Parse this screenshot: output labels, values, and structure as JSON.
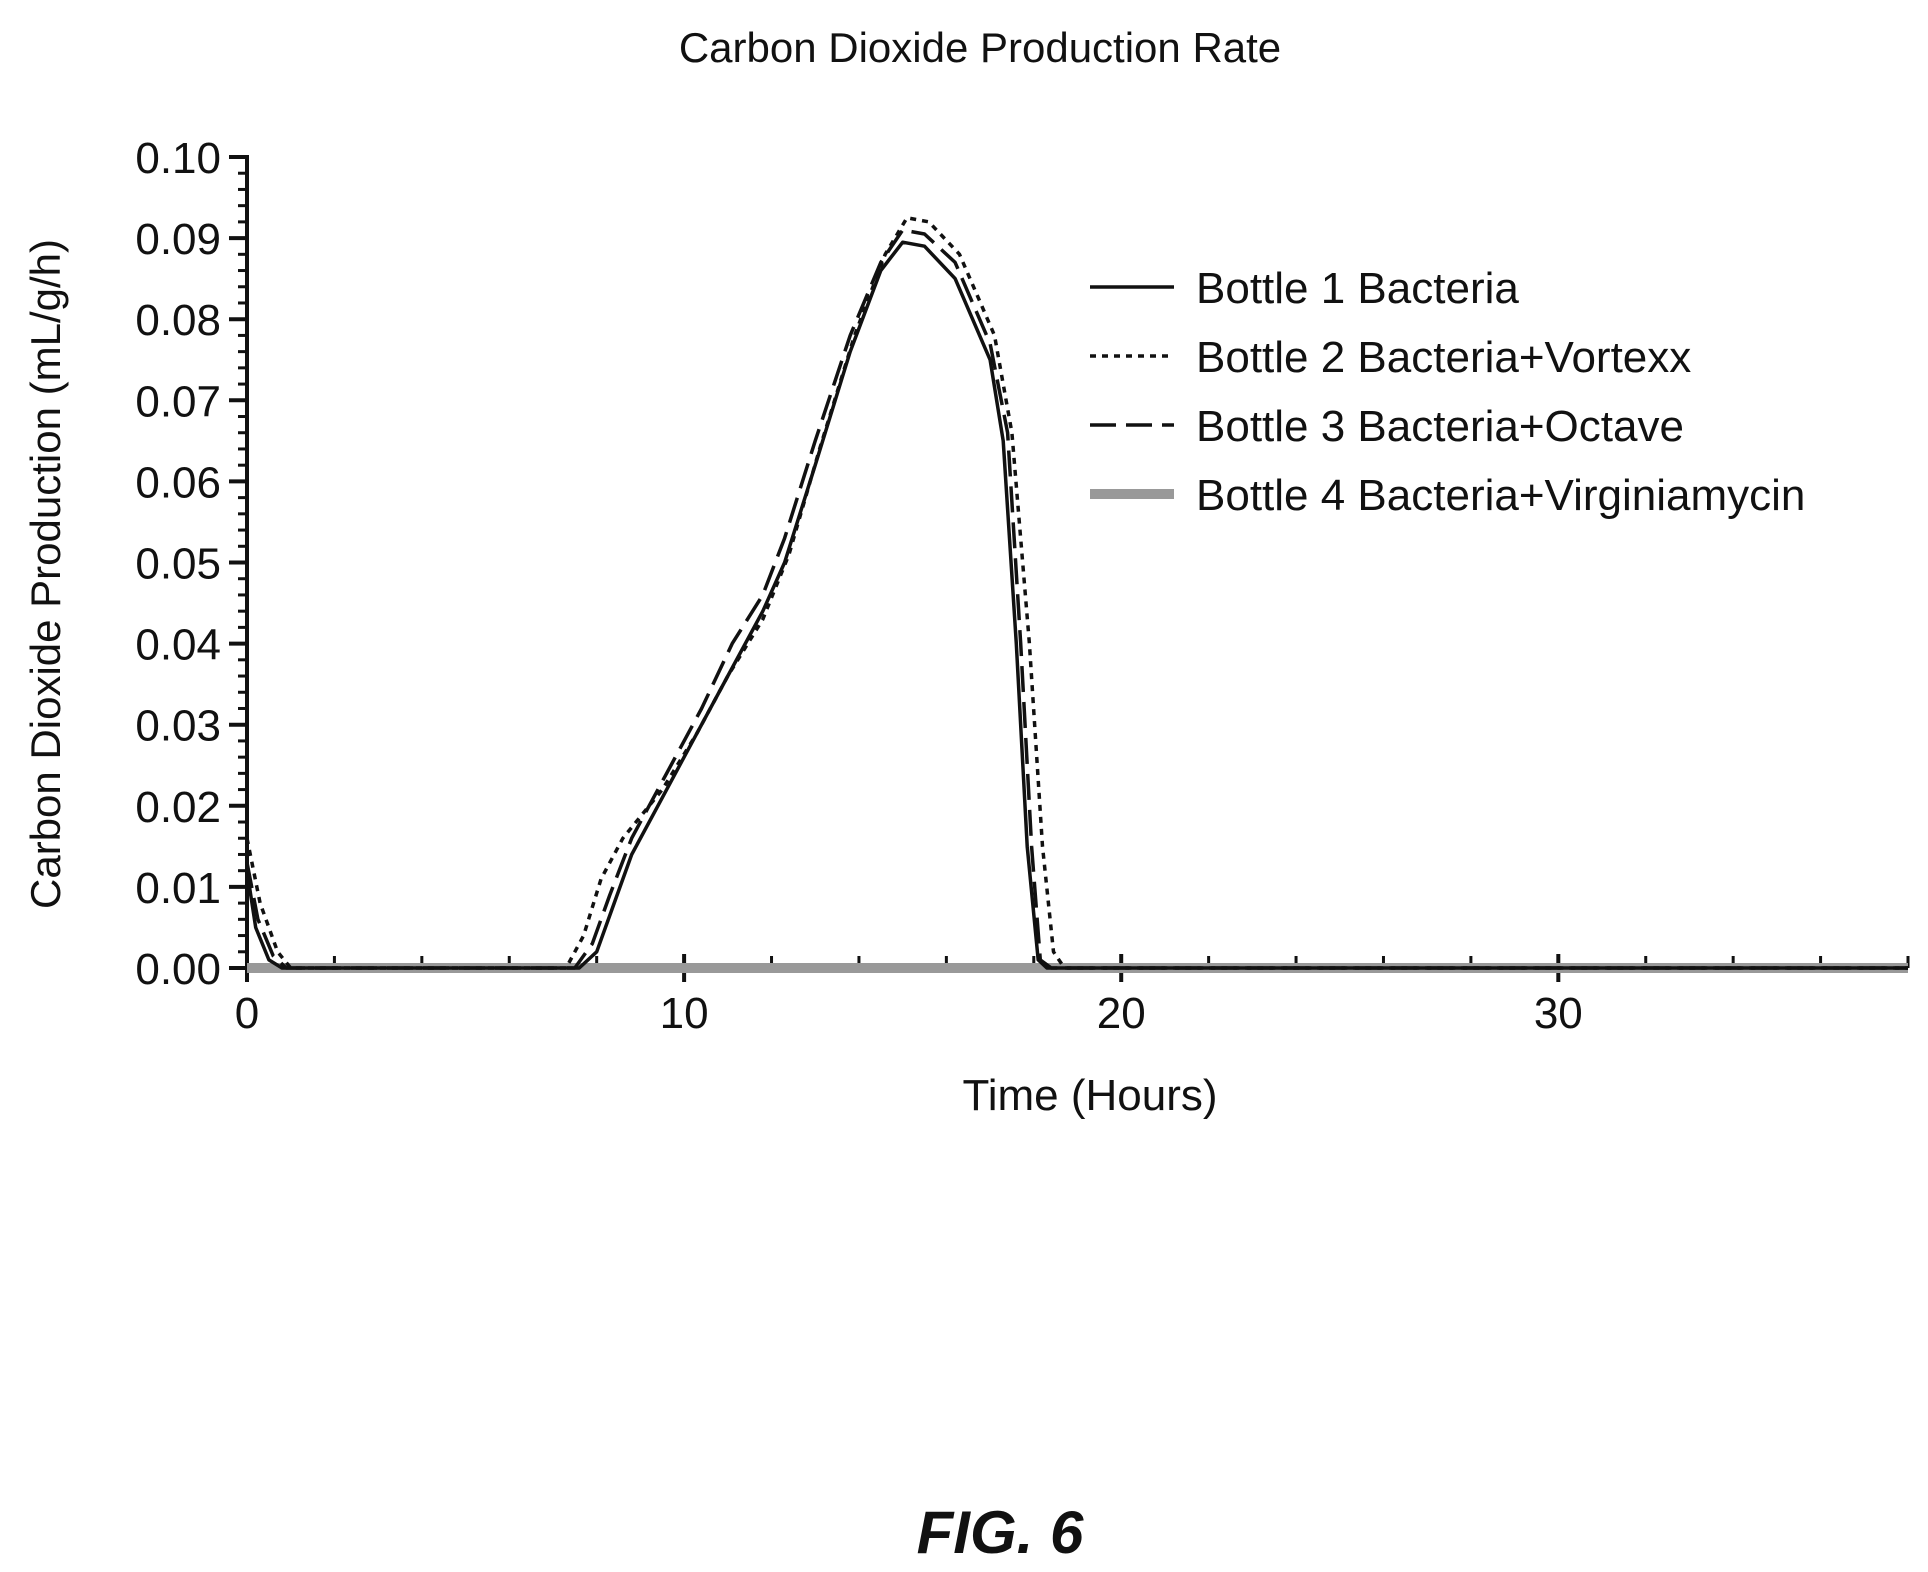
{
  "figure_label": "FIG. 6",
  "chart_data": {
    "type": "line",
    "title": "Carbon Dioxide Production Rate",
    "xlabel": "Time (Hours)",
    "ylabel": "Carbon Dioxide Production (mL/g/h)",
    "xlim": [
      0,
      38
    ],
    "ylim": [
      0,
      0.1
    ],
    "x_ticks": [
      0,
      10,
      20,
      30
    ],
    "x_tick_labels": [
      "0",
      "10",
      "20",
      "30"
    ],
    "y_ticks": [
      0.0,
      0.01,
      0.02,
      0.03,
      0.04,
      0.05,
      0.06,
      0.07,
      0.08,
      0.09,
      0.1
    ],
    "y_tick_labels": [
      "0.00",
      "0.01",
      "0.02",
      "0.03",
      "0.04",
      "0.05",
      "0.06",
      "0.07",
      "0.08",
      "0.09",
      "0.10"
    ],
    "grid": false,
    "legend_position": "top-right",
    "series": [
      {
        "name": "Bottle 1 Bacteria",
        "style": "solid-thin",
        "color": "#111111",
        "points": [
          [
            0,
            0.012
          ],
          [
            0.2,
            0.005
          ],
          [
            0.5,
            0.001
          ],
          [
            0.8,
            0
          ],
          [
            7.6,
            0
          ],
          [
            8.0,
            0.002
          ],
          [
            8.4,
            0.008
          ],
          [
            8.8,
            0.014
          ],
          [
            9.5,
            0.021
          ],
          [
            10.2,
            0.028
          ],
          [
            11.0,
            0.036
          ],
          [
            11.8,
            0.044
          ],
          [
            12.3,
            0.05
          ],
          [
            13.0,
            0.062
          ],
          [
            13.8,
            0.076
          ],
          [
            14.5,
            0.086
          ],
          [
            15.0,
            0.0895
          ],
          [
            15.5,
            0.089
          ],
          [
            16.2,
            0.085
          ],
          [
            17.0,
            0.075
          ],
          [
            17.3,
            0.065
          ],
          [
            17.6,
            0.04
          ],
          [
            17.85,
            0.015
          ],
          [
            18.1,
            0.001
          ],
          [
            18.3,
            0
          ],
          [
            38,
            0
          ]
        ]
      },
      {
        "name": "Bottle 2 Bacteria+Vortexx",
        "style": "dotted",
        "color": "#111111",
        "points": [
          [
            0,
            0.016
          ],
          [
            0.3,
            0.008
          ],
          [
            0.7,
            0.002
          ],
          [
            1.0,
            0
          ],
          [
            7.3,
            0
          ],
          [
            7.7,
            0.004
          ],
          [
            8.1,
            0.011
          ],
          [
            8.6,
            0.016
          ],
          [
            9.5,
            0.022
          ],
          [
            10.3,
            0.029
          ],
          [
            11.0,
            0.036
          ],
          [
            11.8,
            0.043
          ],
          [
            12.4,
            0.051
          ],
          [
            13.1,
            0.064
          ],
          [
            13.9,
            0.078
          ],
          [
            14.6,
            0.088
          ],
          [
            15.1,
            0.0925
          ],
          [
            15.6,
            0.092
          ],
          [
            16.3,
            0.088
          ],
          [
            17.1,
            0.078
          ],
          [
            17.5,
            0.066
          ],
          [
            17.9,
            0.04
          ],
          [
            18.2,
            0.015
          ],
          [
            18.45,
            0.002
          ],
          [
            18.7,
            0
          ],
          [
            38,
            0
          ]
        ]
      },
      {
        "name": "Bottle 3 Bacteria+Octave",
        "style": "dashed",
        "color": "#111111",
        "points": [
          [
            0,
            0.013
          ],
          [
            0.25,
            0.006
          ],
          [
            0.6,
            0.0015
          ],
          [
            0.9,
            0
          ],
          [
            7.5,
            0
          ],
          [
            7.9,
            0.003
          ],
          [
            8.3,
            0.009
          ],
          [
            8.8,
            0.016
          ],
          [
            9.6,
            0.024
          ],
          [
            10.4,
            0.032
          ],
          [
            11.1,
            0.04
          ],
          [
            11.8,
            0.046
          ],
          [
            12.3,
            0.053
          ],
          [
            13.0,
            0.065
          ],
          [
            13.8,
            0.078
          ],
          [
            14.5,
            0.087
          ],
          [
            15.0,
            0.091
          ],
          [
            15.5,
            0.0905
          ],
          [
            16.2,
            0.087
          ],
          [
            17.0,
            0.077
          ],
          [
            17.4,
            0.066
          ],
          [
            17.7,
            0.04
          ],
          [
            17.95,
            0.015
          ],
          [
            18.15,
            0.001
          ],
          [
            18.4,
            0
          ],
          [
            38,
            0
          ]
        ]
      },
      {
        "name": "Bottle 4 Bacteria+Virginiamycin",
        "style": "thick-gray",
        "color": "#999999",
        "points": [
          [
            0,
            0
          ],
          [
            38,
            0
          ]
        ]
      }
    ]
  }
}
